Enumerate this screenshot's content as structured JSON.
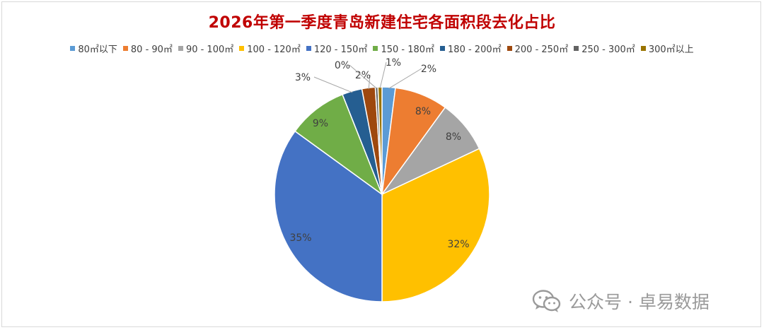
{
  "chart_data": {
    "type": "pie",
    "title": "2026年第一季度青岛新建住宅各面积段去化占比",
    "legend_position": "top",
    "slices": [
      {
        "name": "80㎡以下",
        "value": 2,
        "label": "2%",
        "color": "#5b9bd5"
      },
      {
        "name": "80 - 90㎡",
        "value": 8,
        "label": "8%",
        "color": "#ed7d31"
      },
      {
        "name": "90 - 100㎡",
        "value": 8,
        "label": "8%",
        "color": "#a5a5a5"
      },
      {
        "name": "100 - 120㎡",
        "value": 32,
        "label": "32%",
        "color": "#ffc000"
      },
      {
        "name": "120 - 150㎡",
        "value": 35,
        "label": "35%",
        "color": "#4472c4"
      },
      {
        "name": "150 - 180㎡",
        "value": 9,
        "label": "9%",
        "color": "#70ad47"
      },
      {
        "name": "180 - 200㎡",
        "value": 3,
        "label": "3%",
        "color": "#255e91"
      },
      {
        "name": "200 - 250㎡",
        "value": 2,
        "label": "2%",
        "color": "#9e480e"
      },
      {
        "name": "250 - 300㎡",
        "value": 0.4,
        "label": "0%",
        "color": "#636363"
      },
      {
        "name": "300㎡以上",
        "value": 0.6,
        "label": "1%",
        "color": "#997300"
      }
    ]
  },
  "watermark": {
    "text": "公众号 · 卓易数据",
    "icon": "wechat-icon"
  }
}
